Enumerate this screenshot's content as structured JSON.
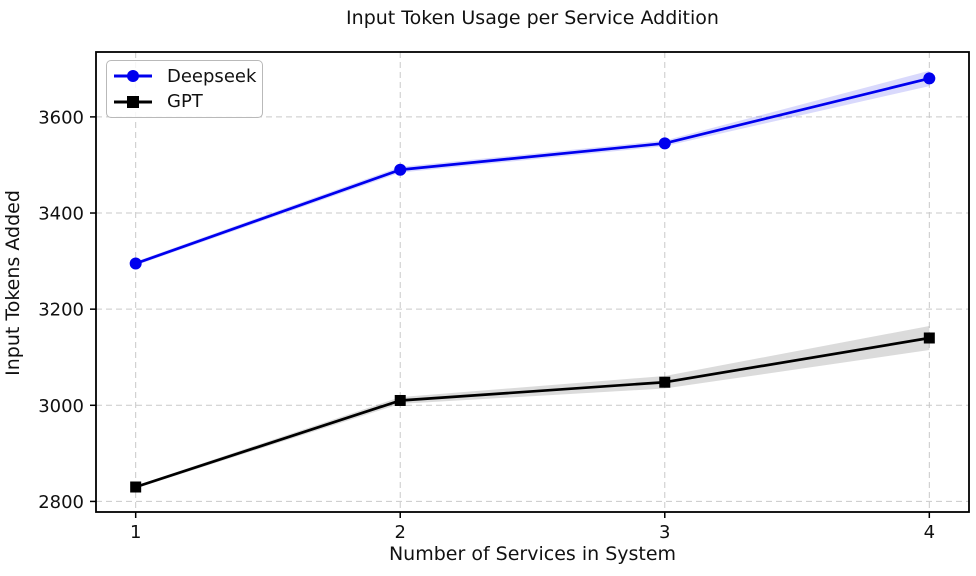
{
  "title": "Input Token Usage per Service Addition",
  "chart_data": {
    "type": "line",
    "title": "Input Token Usage per Service Addition",
    "xlabel": "Number of Services in System",
    "ylabel": "Input Tokens Added",
    "x": [
      1,
      2,
      3,
      4
    ],
    "series": [
      {
        "name": "Deepseek",
        "color": "#0000ee",
        "marker": "circle",
        "values": [
          3295,
          3490,
          3545,
          3680
        ],
        "band_halfwidth": [
          4,
          6,
          6,
          16
        ]
      },
      {
        "name": "GPT",
        "color": "#000000",
        "marker": "square",
        "values": [
          2830,
          3010,
          3048,
          3140
        ],
        "band_halfwidth": [
          3,
          7,
          13,
          25
        ]
      }
    ],
    "xticks": [
      "1",
      "2",
      "3",
      "4"
    ],
    "xtick_values": [
      1,
      2,
      3,
      4
    ],
    "yticks": [
      "2800",
      "3000",
      "3200",
      "3400",
      "3600"
    ],
    "ytick_values": [
      2800,
      3000,
      3200,
      3400,
      3600
    ],
    "xlim": [
      0.85,
      4.15
    ],
    "ylim": [
      2778,
      3735
    ],
    "grid": true,
    "grid_style": "dashed",
    "legend_position": "upper left"
  },
  "colors": {
    "deepseek_line": "#0000ee",
    "deepseek_band": "rgba(0,0,238,0.15)",
    "gpt_line": "#000000",
    "gpt_band": "rgba(0,0,0,0.14)",
    "grid": "#c9c9c9",
    "spine": "#000000",
    "text": "#111111",
    "background": "#ffffff"
  }
}
